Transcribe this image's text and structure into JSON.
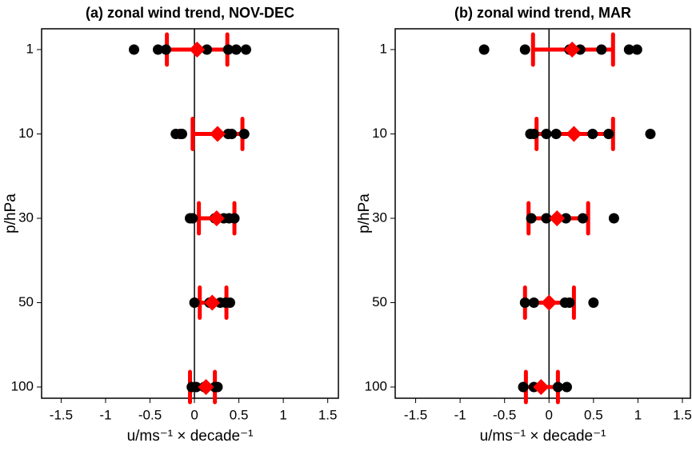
{
  "chart_data": [
    {
      "type": "strip",
      "title": "(a) zonal wind trend, NOV-DEC",
      "xlabel": "u/ms⁻¹ × decade⁻¹",
      "ylabel": "p/hPa",
      "categories": [
        "1",
        "10",
        "30",
        "50",
        "100"
      ],
      "points": [
        [
          -0.68,
          -0.41,
          -0.32,
          0.14,
          0.38,
          0.47,
          0.58
        ],
        [
          -0.21,
          -0.16,
          -0.14,
          0.26,
          0.38,
          0.42,
          0.56
        ],
        [
          -0.05,
          -0.02,
          0.23,
          0.33,
          0.39,
          0.45
        ],
        [
          0.0,
          0.17,
          0.29,
          0.35,
          0.4
        ],
        [
          -0.03,
          0.02,
          0.11,
          0.23,
          0.26
        ]
      ],
      "mean": [
        0.03,
        0.26,
        0.25,
        0.2,
        0.13
      ],
      "lower": [
        -0.31,
        -0.02,
        0.05,
        0.06,
        -0.05
      ],
      "upper": [
        0.37,
        0.54,
        0.45,
        0.36,
        0.23
      ],
      "point_color": "#000000",
      "mean_color": "#ff0000",
      "xlim": [
        -1.72,
        1.62
      ],
      "xticks": [
        -1.5,
        -1,
        -0.5,
        0,
        0.5,
        1,
        1.5
      ]
    },
    {
      "type": "strip",
      "title": "(b) zonal wind trend, MAR",
      "xlabel": "u/ms⁻¹ × decade⁻¹",
      "ylabel": "p/hPa",
      "categories": [
        "1",
        "10",
        "30",
        "50",
        "100"
      ],
      "points": [
        [
          -0.73,
          -0.27,
          0.23,
          0.35,
          0.59,
          0.9,
          0.99
        ],
        [
          -0.21,
          -0.17,
          -0.03,
          0.08,
          0.49,
          0.67,
          1.14
        ],
        [
          -0.2,
          -0.03,
          0.19,
          0.38,
          0.73
        ],
        [
          -0.27,
          -0.17,
          0.18,
          0.23,
          0.5
        ],
        [
          -0.29,
          -0.17,
          0.1,
          0.2
        ]
      ],
      "mean": [
        0.26,
        0.28,
        0.09,
        0.0,
        -0.09
      ],
      "lower": [
        -0.18,
        -0.14,
        -0.23,
        -0.27,
        -0.26
      ],
      "upper": [
        0.72,
        0.72,
        0.44,
        0.28,
        0.1
      ],
      "point_color": "#000000",
      "mean_color": "#ff0000",
      "xlim": [
        -1.73,
        1.59
      ],
      "xticks": [
        -1.5,
        -1,
        -0.5,
        0,
        0.5,
        1,
        1.5
      ]
    }
  ]
}
